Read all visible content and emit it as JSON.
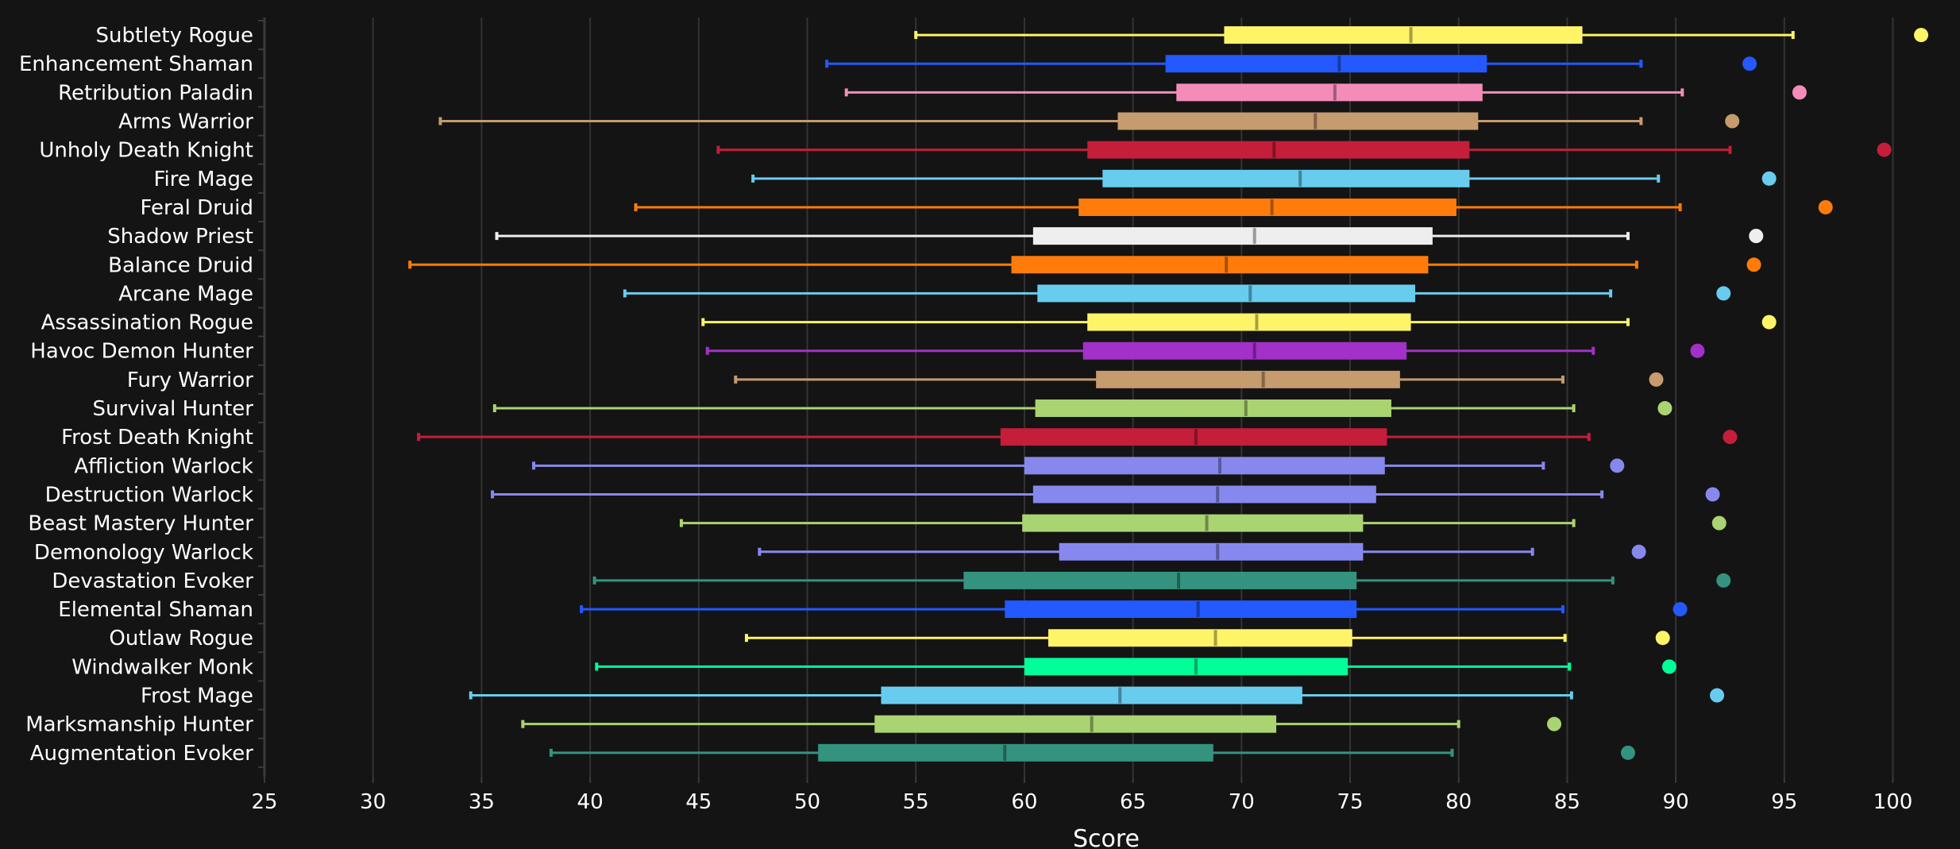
{
  "chart_data": {
    "type": "boxplot",
    "title": "",
    "xlabel": "Score",
    "ylabel": "",
    "xlim": [
      25,
      102
    ],
    "xticks": [
      25,
      30,
      35,
      40,
      45,
      50,
      55,
      60,
      65,
      70,
      75,
      80,
      85,
      90,
      95,
      100
    ],
    "grid": true,
    "rows": [
      {
        "name": "Subtlety Rogue",
        "color": "#FFF468",
        "min": 55.0,
        "q1": 69.2,
        "median": 77.8,
        "q3": 85.7,
        "max": 95.4,
        "dot": 101.3
      },
      {
        "name": "Enhancement Shaman",
        "color": "#2359FF",
        "min": 50.9,
        "q1": 66.5,
        "median": 74.5,
        "q3": 81.3,
        "max": 88.4,
        "dot": 93.4
      },
      {
        "name": "Retribution Paladin",
        "color": "#F48CBA",
        "min": 51.8,
        "q1": 67.0,
        "median": 74.3,
        "q3": 81.1,
        "max": 90.3,
        "dot": 95.7
      },
      {
        "name": "Arms Warrior",
        "color": "#C69B6D",
        "min": 33.1,
        "q1": 64.3,
        "median": 73.4,
        "q3": 80.9,
        "max": 88.4,
        "dot": 92.6
      },
      {
        "name": "Unholy Death Knight",
        "color": "#C41E3A",
        "min": 45.9,
        "q1": 62.9,
        "median": 71.5,
        "q3": 80.5,
        "max": 92.5,
        "dot": 99.6
      },
      {
        "name": "Fire Mage",
        "color": "#68CCEF",
        "min": 47.5,
        "q1": 63.6,
        "median": 72.7,
        "q3": 80.5,
        "max": 89.2,
        "dot": 94.3
      },
      {
        "name": "Feral Druid",
        "color": "#FF7C0A",
        "min": 42.1,
        "q1": 62.5,
        "median": 71.4,
        "q3": 79.9,
        "max": 90.2,
        "dot": 96.9
      },
      {
        "name": "Shadow Priest",
        "color": "#EEEEEE",
        "min": 35.7,
        "q1": 60.4,
        "median": 70.6,
        "q3": 78.8,
        "max": 87.8,
        "dot": 93.7
      },
      {
        "name": "Balance Druid",
        "color": "#FF7C0A",
        "min": 31.7,
        "q1": 59.4,
        "median": 69.3,
        "q3": 78.6,
        "max": 88.2,
        "dot": 93.6
      },
      {
        "name": "Arcane Mage",
        "color": "#68CCEF",
        "min": 41.6,
        "q1": 60.6,
        "median": 70.4,
        "q3": 78.0,
        "max": 87.0,
        "dot": 92.2
      },
      {
        "name": "Assassination Rogue",
        "color": "#FFF468",
        "min": 45.2,
        "q1": 62.9,
        "median": 70.7,
        "q3": 77.8,
        "max": 87.8,
        "dot": 94.3
      },
      {
        "name": "Havoc Demon Hunter",
        "color": "#A330C9",
        "min": 45.4,
        "q1": 62.7,
        "median": 70.6,
        "q3": 77.6,
        "max": 86.2,
        "dot": 91.0
      },
      {
        "name": "Fury Warrior",
        "color": "#C69B6D",
        "min": 46.7,
        "q1": 63.3,
        "median": 71.0,
        "q3": 77.3,
        "max": 84.8,
        "dot": 89.1
      },
      {
        "name": "Survival Hunter",
        "color": "#AAD372",
        "min": 35.6,
        "q1": 60.5,
        "median": 70.2,
        "q3": 76.9,
        "max": 85.3,
        "dot": 89.5
      },
      {
        "name": "Frost Death Knight",
        "color": "#C41E3A",
        "min": 32.1,
        "q1": 58.9,
        "median": 67.9,
        "q3": 76.7,
        "max": 86.0,
        "dot": 92.5
      },
      {
        "name": "Affliction Warlock",
        "color": "#8788EE",
        "min": 37.4,
        "q1": 60.0,
        "median": 69.0,
        "q3": 76.6,
        "max": 83.9,
        "dot": 87.3
      },
      {
        "name": "Destruction Warlock",
        "color": "#8788EE",
        "min": 35.5,
        "q1": 60.4,
        "median": 68.9,
        "q3": 76.2,
        "max": 86.6,
        "dot": 91.7
      },
      {
        "name": "Beast Mastery Hunter",
        "color": "#AAD372",
        "min": 44.2,
        "q1": 59.9,
        "median": 68.4,
        "q3": 75.6,
        "max": 85.3,
        "dot": 92.0
      },
      {
        "name": "Demonology Warlock",
        "color": "#8788EE",
        "min": 47.8,
        "q1": 61.6,
        "median": 68.9,
        "q3": 75.6,
        "max": 83.4,
        "dot": 88.3
      },
      {
        "name": "Devastation Evoker",
        "color": "#33937F",
        "min": 40.2,
        "q1": 57.2,
        "median": 67.1,
        "q3": 75.3,
        "max": 87.1,
        "dot": 92.2
      },
      {
        "name": "Elemental Shaman",
        "color": "#2359FF",
        "min": 39.6,
        "q1": 59.1,
        "median": 68.0,
        "q3": 75.3,
        "max": 84.8,
        "dot": 90.2
      },
      {
        "name": "Outlaw Rogue",
        "color": "#FFF468",
        "min": 47.2,
        "q1": 61.1,
        "median": 68.8,
        "q3": 75.1,
        "max": 84.9,
        "dot": 89.4
      },
      {
        "name": "Windwalker Monk",
        "color": "#00FF98",
        "min": 40.3,
        "q1": 60.0,
        "median": 67.9,
        "q3": 74.9,
        "max": 85.1,
        "dot": 89.7
      },
      {
        "name": "Frost Mage",
        "color": "#68CCEF",
        "min": 34.5,
        "q1": 53.4,
        "median": 64.4,
        "q3": 72.8,
        "max": 85.2,
        "dot": 91.9
      },
      {
        "name": "Marksmanship Hunter",
        "color": "#AAD372",
        "min": 36.9,
        "q1": 53.1,
        "median": 63.1,
        "q3": 71.6,
        "max": 80.0,
        "dot": 84.4
      },
      {
        "name": "Augmentation Evoker",
        "color": "#33937F",
        "min": 38.2,
        "q1": 50.5,
        "median": 59.1,
        "q3": 68.7,
        "max": 79.7,
        "dot": 87.8
      }
    ]
  }
}
